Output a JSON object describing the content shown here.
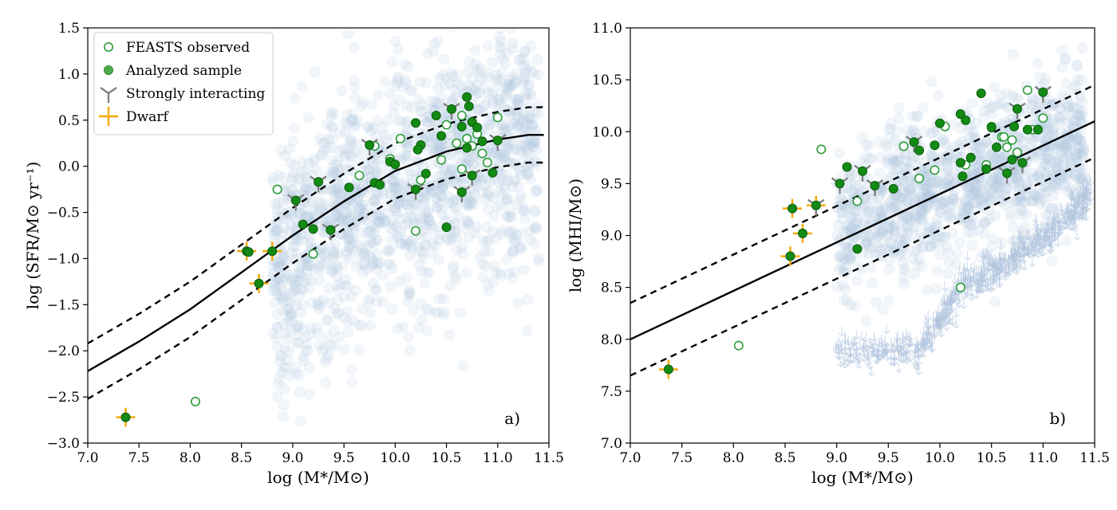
{
  "chart_data": [
    {
      "type": "scatter",
      "panel_label": "a)",
      "xlabel": "log (M*/M⊙)",
      "ylabel": "log (SFR/M⊙ yr⁻¹)",
      "xlim": [
        7.0,
        11.5
      ],
      "ylim": [
        -3.0,
        1.5
      ],
      "xticks": [
        7.0,
        7.5,
        8.0,
        8.5,
        9.0,
        9.5,
        10.0,
        10.5,
        11.0,
        11.5
      ],
      "yticks": [
        -3.0,
        -2.5,
        -2.0,
        -1.5,
        -1.0,
        -0.5,
        0.0,
        0.5,
        1.0,
        1.5
      ],
      "xtick_labels": [
        "7.0",
        "7.5",
        "8.0",
        "8.5",
        "9.0",
        "9.5",
        "10.0",
        "10.5",
        "11.0",
        "11.5"
      ],
      "ytick_labels": [
        "−3.0",
        "−2.5",
        "−2.0",
        "−1.5",
        "−1.0",
        "−0.5",
        "0.0",
        "0.5",
        "1.0",
        "1.5"
      ],
      "legend": {
        "placement": "top-left",
        "entries": [
          {
            "label": "FEASTS observed",
            "marker": "open-circle"
          },
          {
            "label": "Analyzed sample",
            "marker": "filled-circle"
          },
          {
            "label": "Strongly interacting",
            "marker": "tri-down"
          },
          {
            "label": "Dwarf",
            "marker": "plus"
          }
        ]
      },
      "colors": {
        "observed": "#2e9e3a",
        "analyzed": "#138a13",
        "interacting": "#808080",
        "dwarf": "#f5a800",
        "background": "#b0c4de",
        "relation": "#000000"
      },
      "relation": {
        "x": [
          7.0,
          7.5,
          8.0,
          8.5,
          9.0,
          9.5,
          10.0,
          10.5,
          11.0,
          11.3,
          11.45
        ],
        "y": [
          -2.22,
          -1.9,
          -1.55,
          -1.15,
          -0.75,
          -0.38,
          -0.05,
          0.16,
          0.29,
          0.34,
          0.34
        ],
        "scatter_dex": 0.3
      },
      "background_cloud": {
        "count": 1500,
        "x_range": [
          8.8,
          11.4
        ],
        "y_center": 0.1,
        "y_spread": 0.6,
        "label": "comparison sample"
      },
      "series": [
        {
          "name": "FEASTS observed",
          "marker": "open-circle",
          "points": [
            [
              8.05,
              -2.55
            ],
            [
              8.85,
              -0.25
            ],
            [
              9.2,
              -0.95
            ],
            [
              9.65,
              -0.1
            ],
            [
              9.8,
              0.22
            ],
            [
              9.95,
              0.08
            ],
            [
              10.05,
              0.3
            ],
            [
              10.2,
              -0.7
            ],
            [
              10.25,
              -0.15
            ],
            [
              10.45,
              0.07
            ],
            [
              10.5,
              0.45
            ],
            [
              10.6,
              0.25
            ],
            [
              10.65,
              0.55
            ],
            [
              10.7,
              0.3
            ],
            [
              10.75,
              0.22
            ],
            [
              10.8,
              0.35
            ],
            [
              10.85,
              0.14
            ],
            [
              10.9,
              0.04
            ],
            [
              11.0,
              0.53
            ],
            [
              10.65,
              -0.03
            ]
          ]
        },
        {
          "name": "Analyzed sample",
          "marker": "filled-circle",
          "points": [
            [
              7.37,
              -2.72
            ],
            [
              8.55,
              -0.92
            ],
            [
              8.57,
              -0.93
            ],
            [
              8.67,
              -1.27
            ],
            [
              8.8,
              -0.92
            ],
            [
              9.03,
              -0.37
            ],
            [
              9.1,
              -0.63
            ],
            [
              9.2,
              -0.68
            ],
            [
              9.25,
              -0.17
            ],
            [
              9.37,
              -0.69
            ],
            [
              9.55,
              -0.23
            ],
            [
              9.75,
              0.23
            ],
            [
              9.8,
              -0.18
            ],
            [
              9.85,
              -0.2
            ],
            [
              9.95,
              0.05
            ],
            [
              10.0,
              0.02
            ],
            [
              10.2,
              0.47
            ],
            [
              10.2,
              -0.25
            ],
            [
              10.25,
              0.23
            ],
            [
              10.3,
              -0.08
            ],
            [
              10.4,
              0.55
            ],
            [
              10.45,
              0.33
            ],
            [
              10.5,
              -0.66
            ],
            [
              10.55,
              0.62
            ],
            [
              10.65,
              0.43
            ],
            [
              10.7,
              0.75
            ],
            [
              10.72,
              0.65
            ],
            [
              10.75,
              0.48
            ],
            [
              10.8,
              0.42
            ],
            [
              10.85,
              0.27
            ],
            [
              10.7,
              0.2
            ],
            [
              10.75,
              -0.1
            ],
            [
              10.65,
              -0.28
            ],
            [
              10.95,
              -0.07
            ],
            [
              11.0,
              0.28
            ],
            [
              10.22,
              0.18
            ]
          ]
        },
        {
          "name": "Strongly interacting",
          "marker": "tri-down",
          "points": [
            [
              9.03,
              -0.37
            ],
            [
              9.25,
              -0.17
            ],
            [
              9.37,
              -0.69
            ],
            [
              9.75,
              0.23
            ],
            [
              10.2,
              -0.25
            ],
            [
              10.55,
              0.62
            ],
            [
              10.65,
              -0.28
            ],
            [
              10.75,
              -0.1
            ],
            [
              11.0,
              0.28
            ]
          ]
        },
        {
          "name": "Dwarf",
          "marker": "plus",
          "points": [
            [
              7.37,
              -2.72
            ],
            [
              8.55,
              -0.92
            ],
            [
              8.67,
              -1.27
            ],
            [
              8.8,
              -0.92
            ]
          ]
        }
      ]
    },
    {
      "type": "scatter",
      "panel_label": "b)",
      "xlabel": "log (M*/M⊙)",
      "ylabel": "log (MHI/M⊙)",
      "xlim": [
        7.0,
        11.5
      ],
      "ylim": [
        7.0,
        11.0
      ],
      "xticks": [
        7.0,
        7.5,
        8.0,
        8.5,
        9.0,
        9.5,
        10.0,
        10.5,
        11.0,
        11.5
      ],
      "yticks": [
        7.0,
        7.5,
        8.0,
        8.5,
        9.0,
        9.5,
        10.0,
        10.5,
        11.0
      ],
      "xtick_labels": [
        "7.0",
        "7.5",
        "8.0",
        "8.5",
        "9.0",
        "9.5",
        "10.0",
        "10.5",
        "11.0",
        "11.5"
      ],
      "ytick_labels": [
        "7.0",
        "7.5",
        "8.0",
        "8.5",
        "9.0",
        "9.5",
        "10.0",
        "10.5",
        "11.0"
      ],
      "colors": {
        "observed": "#2e9e3a",
        "analyzed": "#138a13",
        "interacting": "#808080",
        "dwarf": "#f5a800",
        "background": "#b0c4de",
        "relation": "#000000"
      },
      "relation": {
        "x": [
          7.0,
          11.5
        ],
        "y": [
          8.0,
          10.1
        ],
        "scatter_dex": 0.35
      },
      "background_cloud": {
        "count": 1200,
        "x_range": [
          9.0,
          11.4
        ],
        "y_center": 9.6,
        "y_spread": 0.35,
        "label": "comparison sample"
      },
      "upper_limits": {
        "count": 700,
        "label": "upper limits",
        "track": [
          [
            9.0,
            7.9
          ],
          [
            9.8,
            7.9
          ],
          [
            10.2,
            8.5
          ],
          [
            10.6,
            8.7
          ],
          [
            11.0,
            9.0
          ],
          [
            11.45,
            9.4
          ]
        ]
      },
      "series": [
        {
          "name": "FEASTS observed",
          "marker": "open-circle",
          "points": [
            [
              8.05,
              7.94
            ],
            [
              8.85,
              9.83
            ],
            [
              9.2,
              9.33
            ],
            [
              9.65,
              9.86
            ],
            [
              9.8,
              9.55
            ],
            [
              9.95,
              9.63
            ],
            [
              10.05,
              10.05
            ],
            [
              10.2,
              8.5
            ],
            [
              10.25,
              9.68
            ],
            [
              10.45,
              9.68
            ],
            [
              10.5,
              10.05
            ],
            [
              10.6,
              9.95
            ],
            [
              10.65,
              9.85
            ],
            [
              10.7,
              9.92
            ],
            [
              10.75,
              9.8
            ],
            [
              10.85,
              10.4
            ],
            [
              10.9,
              10.02
            ],
            [
              11.0,
              10.13
            ],
            [
              10.62,
              9.95
            ]
          ]
        },
        {
          "name": "Analyzed sample",
          "marker": "filled-circle",
          "points": [
            [
              7.37,
              7.71
            ],
            [
              8.55,
              8.8
            ],
            [
              8.57,
              9.26
            ],
            [
              8.67,
              9.02
            ],
            [
              8.8,
              9.29
            ],
            [
              9.03,
              9.5
            ],
            [
              9.1,
              9.66
            ],
            [
              9.2,
              8.87
            ],
            [
              9.25,
              9.62
            ],
            [
              9.37,
              9.48
            ],
            [
              9.55,
              9.45
            ],
            [
              9.75,
              9.9
            ],
            [
              9.8,
              9.82
            ],
            [
              9.95,
              9.87
            ],
            [
              10.0,
              10.08
            ],
            [
              10.2,
              10.17
            ],
            [
              10.2,
              9.7
            ],
            [
              10.25,
              10.11
            ],
            [
              10.3,
              9.75
            ],
            [
              10.4,
              10.37
            ],
            [
              10.45,
              9.64
            ],
            [
              10.5,
              10.04
            ],
            [
              10.55,
              9.85
            ],
            [
              10.65,
              9.6
            ],
            [
              10.7,
              9.73
            ],
            [
              10.72,
              10.05
            ],
            [
              10.75,
              10.22
            ],
            [
              10.8,
              9.7
            ],
            [
              10.85,
              10.02
            ],
            [
              10.95,
              10.02
            ],
            [
              11.0,
              10.38
            ],
            [
              10.22,
              9.57
            ]
          ]
        },
        {
          "name": "Strongly interacting",
          "marker": "tri-down",
          "points": [
            [
              9.03,
              9.5
            ],
            [
              9.25,
              9.62
            ],
            [
              9.37,
              9.48
            ],
            [
              9.75,
              9.9
            ],
            [
              10.65,
              9.6
            ],
            [
              10.75,
              10.22
            ],
            [
              11.0,
              10.38
            ],
            [
              10.8,
              9.7
            ],
            [
              8.8,
              9.29
            ]
          ]
        },
        {
          "name": "Dwarf",
          "marker": "plus",
          "points": [
            [
              7.37,
              7.71
            ],
            [
              8.55,
              8.8
            ],
            [
              8.57,
              9.26
            ],
            [
              8.67,
              9.02
            ],
            [
              8.8,
              9.29
            ]
          ]
        }
      ]
    }
  ]
}
